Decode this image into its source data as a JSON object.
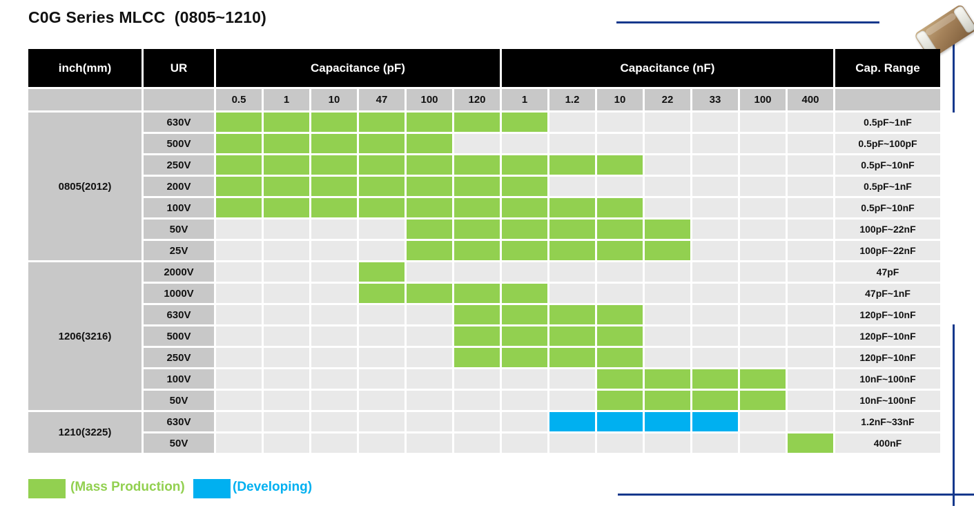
{
  "title": "C0G Series MLCC  (0805~1210)",
  "header": {
    "inch_label": "inch(mm)",
    "ur_label": "UR",
    "cap_range_label": "Cap. Range"
  },
  "legend": [
    {
      "key": "mp",
      "label": "(Mass Production)",
      "color": "#92D050"
    },
    {
      "key": "dev",
      "label": "(Developing)",
      "color": "#00B0F0"
    }
  ],
  "colors": {
    "mass_production": "#92D050",
    "developing": "#00B0F0",
    "header_bg": "#000000",
    "header_text": "#FFFFFF",
    "label_cell_bg": "#C8C8C8",
    "empty_cell_bg": "#E9E9E9",
    "accent_line": "#15388C"
  },
  "chart_data": {
    "type": "heatmap",
    "title": "C0G Series MLCC (0805~1210)",
    "legend_position": "bottom-left",
    "cell_states": {
      "mp": "Mass Production",
      "dev": "Developing",
      "": "not offered"
    },
    "col_groups": [
      {
        "label": "Capacitance (pF)",
        "cols": [
          "0.5",
          "1",
          "10",
          "47",
          "100",
          "120"
        ]
      },
      {
        "label": "Capacitance (nF)",
        "cols": [
          "1",
          "1.2",
          "10",
          "22",
          "33",
          "100",
          "400"
        ]
      }
    ],
    "row_groups": [
      {
        "size": "0805(2012)",
        "rows": [
          {
            "ur": "630V",
            "cells": [
              "mp",
              "mp",
              "mp",
              "mp",
              "mp",
              "mp",
              "mp",
              "",
              "",
              "",
              "",
              "",
              ""
            ],
            "cap_range": "0.5pF~1nF"
          },
          {
            "ur": "500V",
            "cells": [
              "mp",
              "mp",
              "mp",
              "mp",
              "mp",
              "",
              "",
              "",
              "",
              "",
              "",
              "",
              ""
            ],
            "cap_range": "0.5pF~100pF"
          },
          {
            "ur": "250V",
            "cells": [
              "mp",
              "mp",
              "mp",
              "mp",
              "mp",
              "mp",
              "mp",
              "mp",
              "mp",
              "",
              "",
              "",
              ""
            ],
            "cap_range": "0.5pF~10nF"
          },
          {
            "ur": "200V",
            "cells": [
              "mp",
              "mp",
              "mp",
              "mp",
              "mp",
              "mp",
              "mp",
              "",
              "",
              "",
              "",
              "",
              ""
            ],
            "cap_range": "0.5pF~1nF"
          },
          {
            "ur": "100V",
            "cells": [
              "mp",
              "mp",
              "mp",
              "mp",
              "mp",
              "mp",
              "mp",
              "mp",
              "mp",
              "",
              "",
              "",
              ""
            ],
            "cap_range": "0.5pF~10nF"
          },
          {
            "ur": "50V",
            "cells": [
              "",
              "",
              "",
              "",
              "mp",
              "mp",
              "mp",
              "mp",
              "mp",
              "mp",
              "",
              "",
              ""
            ],
            "cap_range": "100pF~22nF"
          },
          {
            "ur": "25V",
            "cells": [
              "",
              "",
              "",
              "",
              "mp",
              "mp",
              "mp",
              "mp",
              "mp",
              "mp",
              "",
              "",
              ""
            ],
            "cap_range": "100pF~22nF"
          }
        ]
      },
      {
        "size": "1206(3216)",
        "rows": [
          {
            "ur": "2000V",
            "cells": [
              "",
              "",
              "",
              "mp",
              "",
              "",
              "",
              "",
              "",
              "",
              "",
              "",
              ""
            ],
            "cap_range": "47pF"
          },
          {
            "ur": "1000V",
            "cells": [
              "",
              "",
              "",
              "mp",
              "mp",
              "mp",
              "mp",
              "",
              "",
              "",
              "",
              "",
              ""
            ],
            "cap_range": "47pF~1nF"
          },
          {
            "ur": "630V",
            "cells": [
              "",
              "",
              "",
              "",
              "",
              "mp",
              "mp",
              "mp",
              "mp",
              "",
              "",
              "",
              ""
            ],
            "cap_range": "120pF~10nF"
          },
          {
            "ur": "500V",
            "cells": [
              "",
              "",
              "",
              "",
              "",
              "mp",
              "mp",
              "mp",
              "mp",
              "",
              "",
              "",
              ""
            ],
            "cap_range": "120pF~10nF"
          },
          {
            "ur": "250V",
            "cells": [
              "",
              "",
              "",
              "",
              "",
              "mp",
              "mp",
              "mp",
              "mp",
              "",
              "",
              "",
              ""
            ],
            "cap_range": "120pF~10nF"
          },
          {
            "ur": "100V",
            "cells": [
              "",
              "",
              "",
              "",
              "",
              "",
              "",
              "",
              "mp",
              "mp",
              "mp",
              "mp",
              ""
            ],
            "cap_range": "10nF~100nF"
          },
          {
            "ur": "50V",
            "cells": [
              "",
              "",
              "",
              "",
              "",
              "",
              "",
              "",
              "mp",
              "mp",
              "mp",
              "mp",
              ""
            ],
            "cap_range": "10nF~100nF"
          }
        ]
      },
      {
        "size": "1210(3225)",
        "rows": [
          {
            "ur": "630V",
            "cells": [
              "",
              "",
              "",
              "",
              "",
              "",
              "",
              "dev",
              "dev",
              "dev",
              "dev",
              "",
              ""
            ],
            "cap_range": "1.2nF~33nF"
          },
          {
            "ur": "50V",
            "cells": [
              "",
              "",
              "",
              "",
              "",
              "",
              "",
              "",
              "",
              "",
              "",
              "",
              "mp"
            ],
            "cap_range": "400nF"
          }
        ]
      }
    ]
  }
}
